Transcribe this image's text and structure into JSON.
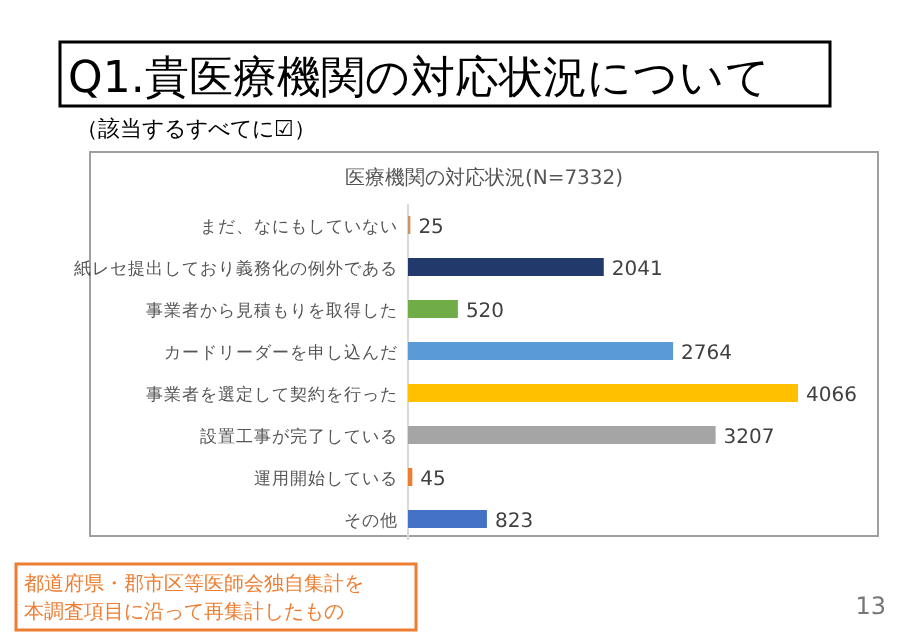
{
  "chart_data": {
    "type": "bar",
    "orientation": "horizontal",
    "title": "Q1.貴医療機関の対応状況について",
    "subtitle": "（該当するすべてに☑）",
    "xlabel": "医療機関の対応状況(N=7332)",
    "categories": [
      "まだ、なにもしていない",
      "紙レセ提出しており義務化の例外である",
      "事業者から見積もりを取得した",
      "カードリーダーを申し込んだ",
      "事業者を選定して契約を行った",
      "設置工事が完了している",
      "運用開始している",
      "その他"
    ],
    "values": [
      25,
      2041,
      520,
      2764,
      4066,
      3207,
      45,
      823
    ],
    "colors": [
      "#c9956a",
      "#223a6b",
      "#70ad47",
      "#5b9bd5",
      "#ffc000",
      "#a5a5a5",
      "#ed7d31",
      "#4472c4"
    ],
    "data_labels": true,
    "annotations": [
      "都道府県・郡市区等医師会独自集計を",
      "本調査項目に沿って再集計したもの",
      "13"
    ]
  }
}
